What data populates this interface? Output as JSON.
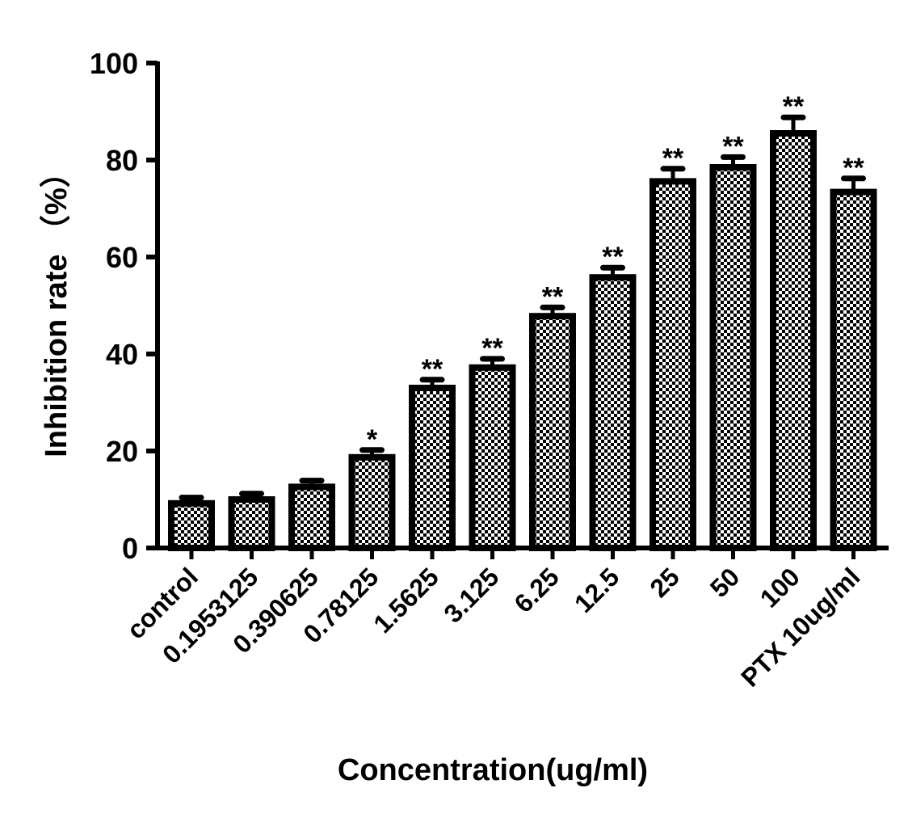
{
  "chart_data": {
    "type": "bar",
    "title": "",
    "xlabel": "Concentration(ug/ml)",
    "ylabel": "Inhibition rate （%）",
    "ylim": [
      0,
      100
    ],
    "yticks": [
      0,
      20,
      40,
      60,
      80,
      100
    ],
    "grid": false,
    "categories": [
      "control",
      "0.1953125",
      "0.390625",
      "0.78125",
      "1.5625",
      "3.125",
      "6.25",
      "12.5",
      "25",
      "50",
      "100",
      "PTX 10ug/ml"
    ],
    "values": [
      9.2,
      10.0,
      12.6,
      18.7,
      33.0,
      37.2,
      47.8,
      55.8,
      75.6,
      78.5,
      85.5,
      73.4
    ],
    "errors": [
      1.2,
      1.2,
      1.3,
      1.5,
      1.7,
      1.8,
      1.8,
      2.0,
      2.6,
      2.1,
      3.3,
      2.8
    ],
    "significance": [
      "",
      "",
      "",
      "*",
      "**",
      "**",
      "**",
      "**",
      "**",
      "**",
      "**",
      "**"
    ],
    "bar_fill": "checkerboard",
    "colors": {
      "bar_edge": "#000000",
      "fill_dark": "#000000",
      "fill_light": "#ffffff"
    }
  }
}
